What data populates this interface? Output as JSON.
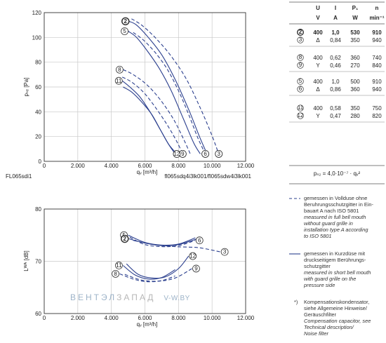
{
  "chart_data": [
    {
      "type": "line",
      "xlabel": "qᵥ [m³/h]",
      "ylabel": "pₛₑ [Pa]",
      "xlim": [
        0,
        12000
      ],
      "ylim": [
        0,
        120
      ],
      "xticks": [
        "0",
        "2.000",
        "4.000",
        "6.000",
        "8.000",
        "10.000",
        "12.000"
      ],
      "yticks": [
        "0",
        "20",
        "40",
        "60",
        "80",
        "100",
        "120"
      ],
      "grid": true,
      "footer_left": "FL065sdi1",
      "footer_right": "fl065sdq4i3lk001/fl065sdw4i3lk001",
      "series": [
        {
          "marker": "2",
          "style": "solid",
          "bold_marker": true,
          "x": [
            5050,
            5500,
            6200,
            7000,
            7800,
            8600,
            9250,
            9700
          ],
          "y": [
            113,
            110,
            100,
            86,
            66,
            42,
            20,
            6
          ]
        },
        {
          "marker": "5",
          "style": "solid",
          "x": [
            5000,
            5500,
            6200,
            6900,
            7600,
            8300,
            8900,
            9300
          ],
          "y": [
            105,
            100,
            88,
            74,
            56,
            34,
            15,
            6
          ]
        },
        {
          "marker": "3",
          "style": "dashed",
          "x": [
            5200,
            5800,
            6600,
            7500,
            8400,
            9200,
            9900,
            10400
          ],
          "y": [
            115,
            110,
            100,
            86,
            68,
            46,
            24,
            6
          ]
        },
        {
          "marker": "6",
          "style": "dashed",
          "x": [
            5300,
            5900,
            6600,
            7300,
            8000,
            8600,
            9150,
            9600
          ],
          "y": [
            104,
            98,
            88,
            75,
            57,
            38,
            19,
            6
          ]
        },
        {
          "marker": "8",
          "style": "dashed",
          "x": [
            4700,
            5300,
            6100,
            6900,
            7700,
            8300,
            8700
          ],
          "y": [
            74,
            70,
            62,
            50,
            34,
            18,
            6
          ]
        },
        {
          "marker": "9",
          "style": "dashed",
          "x": [
            4650,
            5200,
            5900,
            6600,
            7300,
            7900,
            8250
          ],
          "y": [
            68,
            64,
            56,
            44,
            30,
            16,
            6
          ]
        },
        {
          "marker": "11",
          "style": "solid",
          "x": [
            4650,
            5100,
            5700,
            6300,
            6900,
            7400,
            7800
          ],
          "y": [
            65,
            60,
            52,
            40,
            26,
            14,
            6
          ]
        },
        {
          "marker": "12",
          "style": "solid",
          "x": [
            4700,
            5200,
            5800,
            6400,
            6900,
            7400,
            7900
          ],
          "y": [
            60,
            56,
            48,
            38,
            26,
            14,
            6
          ]
        }
      ]
    },
    {
      "type": "line",
      "xlabel": "qᵥ [m³/h]",
      "ylabel": "Lᵂᴬ [dB]",
      "xlim": [
        0,
        12000
      ],
      "ylim": [
        60,
        80
      ],
      "xticks": [
        "0",
        "2.000",
        "4.000",
        "6.000",
        "8.000",
        "10.000",
        "12.000"
      ],
      "yticks": [
        "60",
        "70",
        "80"
      ],
      "grid": true,
      "series": [
        {
          "marker": "5",
          "style": "solid",
          "x": [
            5000,
            6000,
            7000,
            8000,
            9000
          ],
          "y": [
            75.0,
            73.6,
            73.1,
            73.3,
            74.5
          ]
        },
        {
          "marker": "2",
          "style": "solid",
          "bold_marker": true,
          "x": [
            5050,
            6000,
            7000,
            8000,
            9300
          ],
          "y": [
            74.3,
            73.5,
            73.0,
            73.2,
            74.5
          ]
        },
        {
          "marker": "6",
          "style": "dashed",
          "x": [
            5100,
            6000,
            7000,
            8000,
            9000
          ],
          "y": [
            74.6,
            73.2,
            72.8,
            73.0,
            74.0
          ]
        },
        {
          "marker": "3",
          "style": "dashed",
          "x": [
            5300,
            6500,
            7800,
            9200,
            10500
          ],
          "y": [
            74.0,
            73.2,
            72.8,
            72.6,
            71.8
          ]
        },
        {
          "marker": "12",
          "style": "solid",
          "x": [
            4900,
            5600,
            6400,
            7200,
            8000,
            8600
          ],
          "y": [
            69.5,
            67.5,
            66.8,
            67.0,
            68.6,
            71.0
          ]
        },
        {
          "marker": "11",
          "style": "solid",
          "x": [
            4700,
            5400,
            6200,
            7000,
            7800
          ],
          "y": [
            69.2,
            67.4,
            66.6,
            66.9,
            68.4
          ]
        },
        {
          "marker": "8",
          "style": "dashed",
          "x": [
            4500,
            5300,
            6100,
            7000,
            7800
          ],
          "y": [
            67.6,
            66.6,
            66.1,
            66.3,
            67.2
          ]
        },
        {
          "marker": "9",
          "style": "dashed",
          "x": [
            4800,
            5800,
            6800,
            7800,
            8800
          ],
          "y": [
            67.5,
            66.4,
            66.2,
            66.8,
            68.6
          ]
        }
      ]
    }
  ],
  "table": {
    "header_row1": [
      "U",
      "I",
      "P₁",
      "n"
    ],
    "header_row2": [
      "V",
      "A",
      "W",
      "min⁻¹"
    ],
    "groups": [
      [
        [
          "2",
          "400",
          "1,0",
          "530",
          "910"
        ],
        [
          "3",
          "Δ",
          "0,84",
          "350",
          "940"
        ]
      ],
      [
        [
          "8",
          "400",
          "0,62",
          "360",
          "740"
        ],
        [
          "9",
          "Y",
          "0,46",
          "270",
          "840"
        ]
      ],
      [
        [
          "5",
          "400",
          "1,0",
          "500",
          "910"
        ],
        [
          "6",
          "Δ",
          "0,86",
          "360",
          "940"
        ]
      ],
      [
        [
          "11",
          "400",
          "0,58",
          "350",
          "750"
        ],
        [
          "12",
          "Y",
          "0,47",
          "280",
          "820"
        ]
      ]
    ],
    "formula": "pₛ₂ = 4,0·10⁻⁷ · qᵥ²"
  },
  "legend": {
    "dashed": {
      "de": [
        "gemessen in Vollduse ohne",
        "Beruhrungsschutzgitter in Ein-",
        "bauart A nach ISO 5801"
      ],
      "en": [
        "measured in full bell mouth",
        "without guard grille in",
        "installation type A according",
        "to ISO 5801"
      ]
    },
    "solid": {
      "de": [
        "gemessen in Kurzdüse mit",
        "druckseitigem Berührungs-",
        "schutzgitter"
      ],
      "en": [
        "measured in short bell mouth",
        "with guard grille on the",
        "pressure side"
      ]
    },
    "footnote": {
      "star": "*)",
      "de": [
        "Kompensationskondensator,",
        "siehe Allgemeine Hinweise/",
        "Geräuschfilter"
      ],
      "en": [
        "Compensation capacitor, see",
        "Technical description/",
        "Noise filter"
      ]
    }
  },
  "watermark": {
    "part1": "ВЕНТЭЛ",
    "part2": "ЗАПАД",
    "part3": "V-W.BY"
  },
  "colors": {
    "curve": "#2b3f8e",
    "grid": "#c8c8c8",
    "axis": "#333333",
    "watermark1": "#9db3c8",
    "watermark2": "#b7b7b7"
  }
}
